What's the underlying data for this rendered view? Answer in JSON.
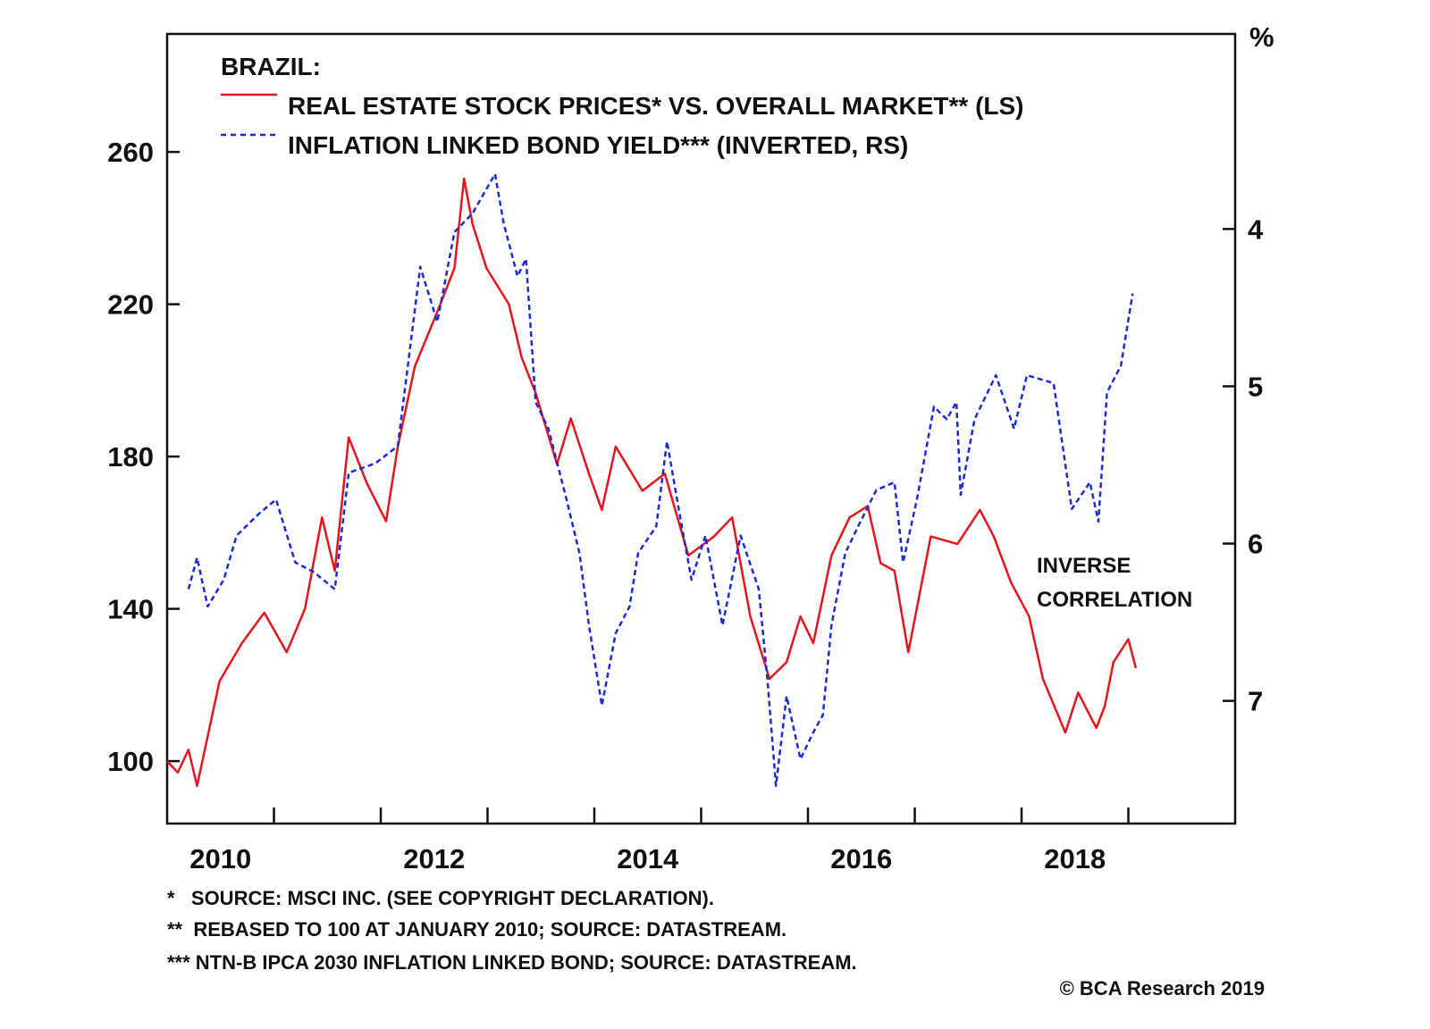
{
  "chart_data": {
    "type": "line",
    "title": "BRAZIL:",
    "xlim": [
      2010,
      2020
    ],
    "x_tick_labels": [
      "2010",
      "2012",
      "2014",
      "2016",
      "2018"
    ],
    "left_axis": {
      "ylim": [
        83.6,
        291
      ],
      "ticks": [
        "100",
        "140",
        "180",
        "220",
        "260"
      ]
    },
    "right_axis": {
      "unit": "%",
      "inverted": true,
      "ylim": [
        2.76,
        7.78
      ],
      "ticks": [
        "4",
        "5",
        "6",
        "7"
      ]
    },
    "grid": false,
    "legend_placement": "top-left",
    "series": [
      {
        "name": "REAL ESTATE STOCK PRICES* VS. OVERALL MARKET** (LS)",
        "axis": "left",
        "color": "#e8141b",
        "style": "solid",
        "x": [
          2010.0,
          2010.1,
          2010.2,
          2010.28,
          2010.49,
          2010.7,
          2010.91,
          2011.12,
          2011.29,
          2011.45,
          2011.57,
          2011.7,
          2011.87,
          2012.05,
          2012.16,
          2012.32,
          2012.53,
          2012.69,
          2012.78,
          2012.86,
          2012.99,
          2013.2,
          2013.32,
          2013.45,
          2013.65,
          2013.78,
          2013.95,
          2014.07,
          2014.2,
          2014.45,
          2014.66,
          2014.88,
          2015.12,
          2015.29,
          2015.46,
          2015.64,
          2015.8,
          2015.93,
          2016.05,
          2016.22,
          2016.39,
          2016.56,
          2016.68,
          2016.81,
          2016.94,
          2017.15,
          2017.4,
          2017.61,
          2017.74,
          2017.9,
          2018.07,
          2018.2,
          2018.41,
          2018.53,
          2018.7,
          2018.78,
          2018.86,
          2019.0,
          2019.07
        ],
        "y": [
          100,
          97,
          103,
          93.5,
          121,
          131,
          139,
          128.6,
          140,
          164,
          150,
          185,
          173,
          163,
          182.6,
          203.7,
          218,
          229.5,
          253,
          241,
          229.5,
          220,
          206,
          196.7,
          178,
          190,
          175.5,
          166,
          182.6,
          171,
          175.5,
          154,
          159,
          164,
          138,
          121.6,
          126,
          138,
          131,
          154,
          164,
          167,
          152,
          150,
          128.6,
          159,
          157,
          166,
          159,
          147,
          138,
          121.6,
          107.5,
          118,
          108.7,
          114.5,
          126,
          132,
          124.4
        ]
      },
      {
        "name": "INFLATION LINKED BOND YIELD*** (INVERTED, RS)",
        "axis": "right",
        "color": "#1a2bd6",
        "style": "dashed",
        "x": [
          2010.2,
          2010.28,
          2010.38,
          2010.53,
          2010.65,
          2010.86,
          2011.02,
          2011.2,
          2011.37,
          2011.57,
          2011.7,
          2011.95,
          2012.16,
          2012.37,
          2012.53,
          2012.69,
          2012.86,
          2013.07,
          2013.15,
          2013.28,
          2013.36,
          2013.45,
          2013.57,
          2013.74,
          2013.86,
          2013.95,
          2014.07,
          2014.2,
          2014.33,
          2014.41,
          2014.58,
          2014.68,
          2014.79,
          2014.91,
          2015.04,
          2015.2,
          2015.37,
          2015.54,
          2015.62,
          2015.7,
          2015.8,
          2015.93,
          2016.05,
          2016.14,
          2016.22,
          2016.35,
          2016.47,
          2016.64,
          2016.81,
          2016.89,
          2017.02,
          2017.18,
          2017.3,
          2017.39,
          2017.43,
          2017.56,
          2017.76,
          2017.93,
          2018.05,
          2018.3,
          2018.47,
          2018.64,
          2018.72,
          2018.8,
          2018.93,
          2019.04
        ],
        "y": [
          6.29,
          6.09,
          6.4,
          6.23,
          5.95,
          5.81,
          5.72,
          6.12,
          6.18,
          6.29,
          5.55,
          5.49,
          5.38,
          4.24,
          4.59,
          4.02,
          3.9,
          3.65,
          3.96,
          4.3,
          4.19,
          5.1,
          5.27,
          5.72,
          6.06,
          6.52,
          7.03,
          6.57,
          6.4,
          6.06,
          5.89,
          5.35,
          5.78,
          6.23,
          5.95,
          6.52,
          5.95,
          6.29,
          6.86,
          7.54,
          6.97,
          7.37,
          7.2,
          7.09,
          6.52,
          6.06,
          5.89,
          5.66,
          5.61,
          6.12,
          5.72,
          5.13,
          5.21,
          5.1,
          5.69,
          5.21,
          4.93,
          5.27,
          4.93,
          4.98,
          5.78,
          5.61,
          5.86,
          5.04,
          4.87,
          4.41
        ]
      }
    ],
    "annotations": [
      "INVERSE",
      "CORRELATION"
    ],
    "footnotes": [
      "*   SOURCE: MSCI INC. (SEE COPYRIGHT DECLARATION).",
      "**  REBASED TO 100 AT JANUARY 2010; SOURCE: DATASTREAM.",
      "*** NTN-B IPCA 2030 INFLATION LINKED BOND; SOURCE: DATASTREAM."
    ],
    "copyright": "© BCA Research 2019"
  }
}
